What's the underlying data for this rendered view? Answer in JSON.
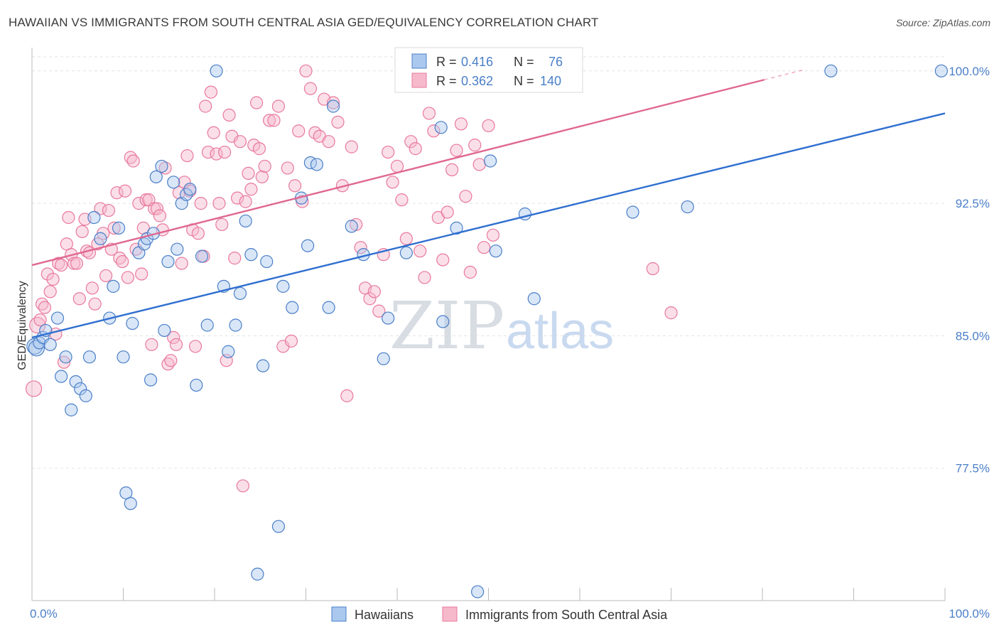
{
  "header": {
    "title": "HAWAIIAN VS IMMIGRANTS FROM SOUTH CENTRAL ASIA GED/EQUIVALENCY CORRELATION CHART",
    "source": "Source: ZipAtlas.com"
  },
  "watermark": {
    "zip": "ZIP",
    "atlas": "atlas"
  },
  "colors": {
    "blue": "#4a7fc8",
    "blue_fill": "#aac8ee",
    "blue_line": "#2f6fd0",
    "pink": "#e8799d",
    "pink_fill": "#f6b9cc",
    "pink_line": "#e06890",
    "grid": "#e3e3e3"
  },
  "legend": {
    "rows": [
      {
        "r_label": "R =",
        "r_value": "0.416",
        "n_label": "N =",
        "n_value": "76"
      },
      {
        "r_label": "R =",
        "r_value": "0.362",
        "n_label": "N =",
        "n_value": "140"
      }
    ]
  },
  "bottom_legend": [
    "Hawaiians",
    "Immigrants from South Central Asia"
  ],
  "chart_data": {
    "type": "scatter",
    "title": "HAWAIIAN VS IMMIGRANTS FROM SOUTH CENTRAL ASIA GED/EQUIVALENCY CORRELATION CHART",
    "xlabel": "",
    "ylabel": "GED/Equivalency",
    "xlim": [
      0,
      100
    ],
    "ylim": [
      70.0,
      101.2
    ],
    "x_tick_labels": [
      "0.0%",
      "100.0%"
    ],
    "y_ticks": [
      77.5,
      85.0,
      92.5,
      100.0
    ],
    "y_tick_labels": [
      "77.5%",
      "85.0%",
      "92.5%",
      "100.0%"
    ],
    "grid": true,
    "legend_position": "top-center",
    "series": [
      {
        "name": "Hawaiians",
        "color": "#4a7fc8",
        "r": 0.416,
        "n": 76,
        "trend": {
          "x": [
            0,
            100
          ],
          "y": [
            84.9,
            97.6
          ]
        },
        "points": [
          [
            0.3,
            84.4
          ],
          [
            0.5,
            84.3
          ],
          [
            0.8,
            84.6
          ],
          [
            1.2,
            84.9
          ],
          [
            1.5,
            85.3
          ],
          [
            2.0,
            84.5
          ],
          [
            2.8,
            86.0
          ],
          [
            3.2,
            82.7
          ],
          [
            3.7,
            83.8
          ],
          [
            4.3,
            80.8
          ],
          [
            4.8,
            82.4
          ],
          [
            5.3,
            82.0
          ],
          [
            5.9,
            81.6
          ],
          [
            6.3,
            83.8
          ],
          [
            6.8,
            91.7
          ],
          [
            7.5,
            90.5
          ],
          [
            8.5,
            86.0
          ],
          [
            8.9,
            87.8
          ],
          [
            9.5,
            91.1
          ],
          [
            10.0,
            83.8
          ],
          [
            10.3,
            76.1
          ],
          [
            10.8,
            75.5
          ],
          [
            11.0,
            85.7
          ],
          [
            11.7,
            89.7
          ],
          [
            12.3,
            90.2
          ],
          [
            12.6,
            90.5
          ],
          [
            13.0,
            82.5
          ],
          [
            13.3,
            90.8
          ],
          [
            13.6,
            94.0
          ],
          [
            14.2,
            94.6
          ],
          [
            14.5,
            85.3
          ],
          [
            14.9,
            89.2
          ],
          [
            15.5,
            93.7
          ],
          [
            15.9,
            89.9
          ],
          [
            16.4,
            92.5
          ],
          [
            16.9,
            93.0
          ],
          [
            17.3,
            93.3
          ],
          [
            18.0,
            82.2
          ],
          [
            18.6,
            89.5
          ],
          [
            19.2,
            85.6
          ],
          [
            20.2,
            100.0
          ],
          [
            21.0,
            87.8
          ],
          [
            21.5,
            84.1
          ],
          [
            22.3,
            85.6
          ],
          [
            22.8,
            87.4
          ],
          [
            23.4,
            91.5
          ],
          [
            24.0,
            89.6
          ],
          [
            24.7,
            71.5
          ],
          [
            25.3,
            83.3
          ],
          [
            25.7,
            89.2
          ],
          [
            27.0,
            74.2
          ],
          [
            27.5,
            87.8
          ],
          [
            28.5,
            86.6
          ],
          [
            29.5,
            92.8
          ],
          [
            30.2,
            90.1
          ],
          [
            30.5,
            94.8
          ],
          [
            31.2,
            94.7
          ],
          [
            32.5,
            86.6
          ],
          [
            33.0,
            98.0
          ],
          [
            35.0,
            91.2
          ],
          [
            36.3,
            89.6
          ],
          [
            38.5,
            83.7
          ],
          [
            39.0,
            86.0
          ],
          [
            41.0,
            89.7
          ],
          [
            44.8,
            96.8
          ],
          [
            45.0,
            85.8
          ],
          [
            46.5,
            91.1
          ],
          [
            48.8,
            70.5
          ],
          [
            50.2,
            94.9
          ],
          [
            50.8,
            89.8
          ],
          [
            54.0,
            91.9
          ],
          [
            55.0,
            87.1
          ],
          [
            65.8,
            92.0
          ],
          [
            71.8,
            92.3
          ],
          [
            87.5,
            100.0
          ],
          [
            99.6,
            100.0
          ]
        ]
      },
      {
        "name": "Immigrants from South Central Asia",
        "color": "#e8799d",
        "r": 0.362,
        "n": 140,
        "trend": {
          "x": [
            0,
            80.2
          ],
          "y": [
            89.0,
            99.5
          ]
        },
        "points": [
          [
            0.2,
            82.0
          ],
          [
            0.6,
            85.6
          ],
          [
            0.9,
            85.9
          ],
          [
            1.1,
            86.8
          ],
          [
            1.4,
            86.6
          ],
          [
            1.7,
            88.5
          ],
          [
            2.0,
            87.5
          ],
          [
            2.3,
            88.2
          ],
          [
            2.6,
            85.1
          ],
          [
            2.9,
            89.1
          ],
          [
            3.2,
            89.0
          ],
          [
            3.5,
            83.5
          ],
          [
            3.8,
            90.2
          ],
          [
            4.0,
            91.7
          ],
          [
            4.3,
            89.6
          ],
          [
            4.6,
            89.1
          ],
          [
            4.9,
            89.1
          ],
          [
            5.2,
            87.1
          ],
          [
            5.5,
            90.9
          ],
          [
            5.8,
            91.6
          ],
          [
            6.0,
            89.8
          ],
          [
            6.3,
            89.7
          ],
          [
            6.6,
            87.7
          ],
          [
            6.9,
            86.8
          ],
          [
            7.2,
            90.2
          ],
          [
            7.5,
            92.2
          ],
          [
            7.8,
            90.8
          ],
          [
            8.1,
            88.4
          ],
          [
            8.4,
            92.1
          ],
          [
            8.7,
            89.9
          ],
          [
            9.0,
            91.1
          ],
          [
            9.3,
            93.1
          ],
          [
            9.6,
            89.4
          ],
          [
            9.9,
            89.2
          ],
          [
            10.2,
            93.2
          ],
          [
            10.5,
            88.3
          ],
          [
            10.8,
            95.1
          ],
          [
            11.1,
            94.9
          ],
          [
            11.4,
            89.9
          ],
          [
            11.7,
            92.5
          ],
          [
            12.0,
            88.5
          ],
          [
            12.2,
            91.1
          ],
          [
            12.5,
            92.7
          ],
          [
            12.8,
            92.7
          ],
          [
            13.1,
            84.5
          ],
          [
            13.4,
            92.2
          ],
          [
            13.7,
            92.2
          ],
          [
            14.0,
            91.8
          ],
          [
            14.3,
            91.0
          ],
          [
            14.6,
            94.5
          ],
          [
            14.9,
            83.4
          ],
          [
            15.2,
            83.6
          ],
          [
            15.5,
            84.9
          ],
          [
            15.8,
            84.5
          ],
          [
            16.1,
            93.1
          ],
          [
            16.4,
            89.1
          ],
          [
            16.7,
            93.7
          ],
          [
            17.0,
            95.2
          ],
          [
            17.3,
            93.2
          ],
          [
            17.6,
            91.0
          ],
          [
            17.9,
            84.4
          ],
          [
            18.2,
            90.8
          ],
          [
            18.5,
            92.5
          ],
          [
            18.8,
            89.5
          ],
          [
            19.0,
            98.0
          ],
          [
            19.3,
            95.4
          ],
          [
            19.6,
            98.8
          ],
          [
            19.9,
            96.5
          ],
          [
            20.2,
            95.3
          ],
          [
            20.5,
            92.5
          ],
          [
            20.8,
            91.3
          ],
          [
            21.1,
            95.4
          ],
          [
            21.3,
            83.6
          ],
          [
            21.6,
            97.5
          ],
          [
            21.9,
            96.3
          ],
          [
            22.2,
            89.4
          ],
          [
            22.5,
            92.8
          ],
          [
            22.8,
            96.0
          ],
          [
            23.1,
            76.5
          ],
          [
            23.4,
            92.6
          ],
          [
            23.7,
            94.2
          ],
          [
            24.0,
            93.3
          ],
          [
            24.3,
            95.8
          ],
          [
            24.6,
            98.2
          ],
          [
            24.9,
            95.6
          ],
          [
            25.2,
            94.0
          ],
          [
            25.5,
            94.6
          ],
          [
            26.0,
            97.2
          ],
          [
            26.5,
            97.2
          ],
          [
            27.0,
            98.0
          ],
          [
            27.5,
            84.4
          ],
          [
            28.0,
            94.5
          ],
          [
            28.4,
            84.7
          ],
          [
            28.8,
            93.5
          ],
          [
            29.2,
            96.6
          ],
          [
            29.6,
            92.6
          ],
          [
            30.0,
            100.0
          ],
          [
            30.5,
            99.0
          ],
          [
            31.0,
            96.5
          ],
          [
            31.5,
            96.3
          ],
          [
            32.0,
            98.4
          ],
          [
            32.5,
            96.0
          ],
          [
            33.0,
            98.2
          ],
          [
            33.5,
            97.1
          ],
          [
            34.0,
            93.5
          ],
          [
            34.5,
            81.6
          ],
          [
            35.0,
            95.7
          ],
          [
            35.5,
            91.3
          ],
          [
            36.0,
            90.0
          ],
          [
            36.5,
            87.7
          ],
          [
            37.0,
            87.1
          ],
          [
            37.5,
            87.5
          ],
          [
            38.0,
            86.4
          ],
          [
            38.5,
            89.6
          ],
          [
            39.0,
            95.4
          ],
          [
            39.5,
            93.7
          ],
          [
            40.0,
            94.6
          ],
          [
            40.5,
            92.7
          ],
          [
            41.0,
            90.5
          ],
          [
            41.5,
            96.0
          ],
          [
            42.0,
            95.6
          ],
          [
            42.5,
            89.8
          ],
          [
            43.0,
            88.3
          ],
          [
            43.5,
            97.6
          ],
          [
            44.0,
            96.6
          ],
          [
            44.5,
            91.7
          ],
          [
            45.0,
            89.3
          ],
          [
            45.5,
            92.0
          ],
          [
            46.0,
            94.4
          ],
          [
            46.5,
            95.5
          ],
          [
            47.0,
            97.0
          ],
          [
            47.5,
            92.9
          ],
          [
            48.0,
            88.6
          ],
          [
            48.5,
            95.8
          ],
          [
            49.0,
            94.7
          ],
          [
            49.5,
            90.0
          ],
          [
            50.0,
            96.9
          ],
          [
            50.5,
            90.7
          ],
          [
            68.0,
            88.8
          ],
          [
            70.0,
            86.3
          ]
        ]
      }
    ]
  }
}
